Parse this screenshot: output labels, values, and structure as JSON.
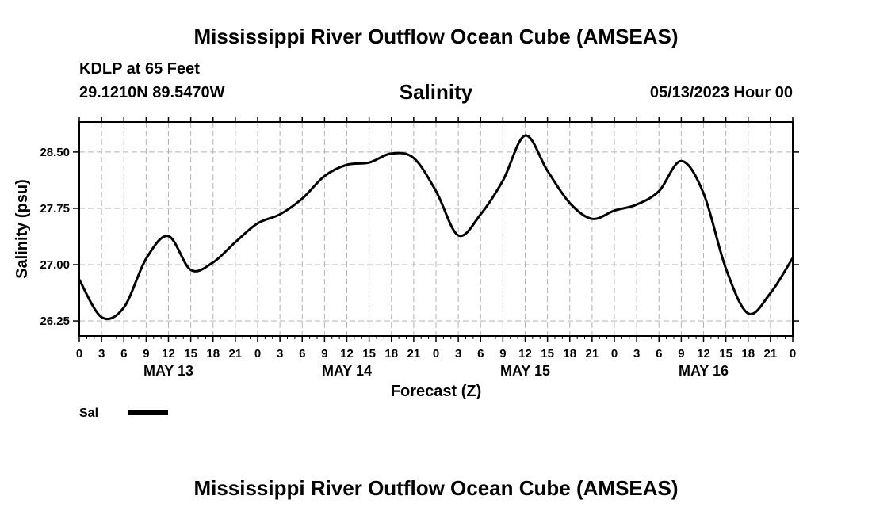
{
  "header": {
    "title": "Mississippi River Outflow Ocean Cube (AMSEAS)",
    "station": "KDLP at 65 Feet",
    "coords": "29.1210N  89.5470W",
    "parameter": "Salinity",
    "datetime": "05/13/2023 Hour 00"
  },
  "footer": {
    "title": "Mississippi River Outflow Ocean Cube (AMSEAS)"
  },
  "chart_data": {
    "type": "line",
    "title": "Salinity",
    "xlabel": "Forecast (Z)",
    "ylabel": "Salinity (psu)",
    "xlim": [
      0,
      96
    ],
    "ylim": [
      26.05,
      28.9
    ],
    "yticks": [
      26.25,
      27.0,
      27.75,
      28.5
    ],
    "ytick_labels": [
      "26.25",
      "27.00",
      "27.75",
      "28.50"
    ],
    "xticks": [
      0,
      3,
      6,
      9,
      12,
      15,
      18,
      21,
      24,
      27,
      30,
      33,
      36,
      39,
      42,
      45,
      48,
      51,
      54,
      57,
      60,
      63,
      66,
      69,
      72,
      75,
      78,
      81,
      84,
      87,
      90,
      93,
      96
    ],
    "xtick_labels": [
      "0",
      "3",
      "6",
      "9",
      "12",
      "15",
      "18",
      "21",
      "0",
      "3",
      "6",
      "9",
      "12",
      "15",
      "18",
      "21",
      "0",
      "3",
      "6",
      "9",
      "12",
      "15",
      "18",
      "21",
      "0",
      "3",
      "6",
      "9",
      "12",
      "15",
      "18",
      "21",
      "0"
    ],
    "day_labels": [
      {
        "x": 12,
        "label": "MAY 13"
      },
      {
        "x": 36,
        "label": "MAY 14"
      },
      {
        "x": 60,
        "label": "MAY 15"
      },
      {
        "x": 84,
        "label": "MAY 16"
      }
    ],
    "grid": true,
    "legend": "bottom-left",
    "series": [
      {
        "name": "Sal",
        "color": "#000000",
        "x": [
          0,
          3,
          6,
          9,
          12,
          15,
          18,
          21,
          24,
          27,
          30,
          33,
          36,
          39,
          42,
          45,
          48,
          51,
          54,
          57,
          60,
          63,
          66,
          69,
          72,
          75,
          78,
          81,
          84,
          87,
          90,
          93,
          96
        ],
        "values": [
          26.8,
          26.3,
          26.43,
          27.08,
          27.38,
          26.93,
          27.03,
          27.3,
          27.55,
          27.67,
          27.88,
          28.18,
          28.33,
          28.36,
          28.48,
          28.42,
          27.98,
          27.39,
          27.67,
          28.12,
          28.72,
          28.25,
          27.82,
          27.61,
          27.72,
          27.8,
          27.98,
          28.38,
          27.95,
          26.95,
          26.35,
          26.62,
          27.09
        ]
      }
    ]
  }
}
